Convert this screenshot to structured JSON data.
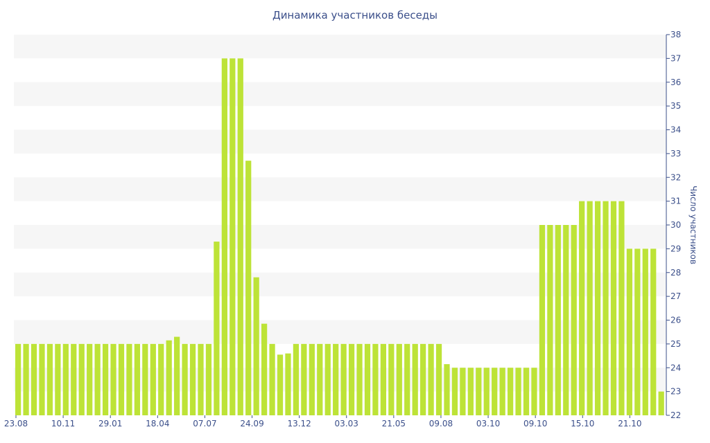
{
  "chart_data": {
    "type": "bar",
    "title": "Динамика участников беседы",
    "xlabel": "",
    "ylabel": "Число участников",
    "ylim": [
      22,
      38
    ],
    "y_ticks": [
      22,
      23,
      24,
      25,
      26,
      27,
      28,
      29,
      30,
      31,
      32,
      33,
      34,
      35,
      36,
      37,
      38
    ],
    "y_axis_side": "right",
    "grid": "alternating horizontal bands",
    "x_tick_labels": [
      "23.08",
      "10.11",
      "29.01",
      "18.04",
      "07.07",
      "24.09",
      "13.12",
      "03.03",
      "21.05",
      "09.08",
      "03.10",
      "09.10",
      "15.10",
      "21.10"
    ],
    "bar_color": "#bde337",
    "values": [
      25,
      25,
      25,
      25,
      25,
      25,
      25,
      25,
      25,
      25,
      25,
      25,
      25,
      25,
      25,
      25,
      25,
      25,
      25,
      25.15,
      25.3,
      25,
      25,
      25,
      25,
      29.3,
      37,
      37,
      37,
      32.7,
      27.8,
      25.85,
      25,
      24.55,
      24.6,
      25,
      25,
      25,
      25,
      25,
      25,
      25,
      25,
      25,
      25,
      25,
      25,
      25,
      25,
      25,
      25,
      25,
      25,
      25,
      24.15,
      24,
      24,
      24,
      24,
      24,
      24,
      24,
      24,
      24,
      24,
      24,
      30,
      30,
      30,
      30,
      30,
      31,
      31,
      31,
      31,
      31,
      31,
      29,
      29,
      29,
      29,
      23
    ]
  }
}
